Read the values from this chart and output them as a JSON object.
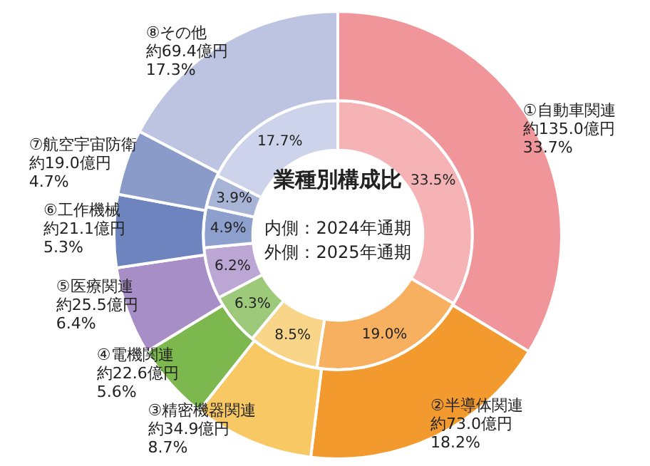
{
  "chart_data": {
    "type": "donut",
    "title": "業種別構成比",
    "annotations": [
      "内側：2024年通期",
      "外側：2025年通期"
    ],
    "categories": [
      "①自動車関連",
      "②半導体関連",
      "③精密機器関連",
      "④電機関連",
      "⑤医療関連",
      "⑥工作機械",
      "⑦航空宇宙防衛",
      "⑧その他"
    ],
    "series": [
      {
        "values": [
          135.0,
          73.0,
          34.9,
          22.6,
          25.5,
          21.1,
          19.0,
          69.4
        ],
        "colors": [
          "#f0969b",
          "#f39a2f",
          "#f8c865",
          "#7cb84e",
          "#a88ec6",
          "#6d84bf",
          "#8a9bc9",
          "#bcc4e2"
        ],
        "value_labels": [
          "約135.0億円\n33.7%",
          "約73.0億円\n18.2%",
          "約34.9億円\n8.7%",
          "約22.6億円\n5.6%",
          "約25.5億円\n6.4%",
          "約21.1億円\n5.3%",
          "約19.0億円\n4.7%",
          "約69.4億円\n17.3%"
        ]
      },
      {
        "values": [
          33.5,
          19.0,
          8.5,
          6.3,
          6.2,
          4.9,
          3.9,
          17.7
        ],
        "colors": [
          "#f5b3b5",
          "#f6b060",
          "#f9d58a",
          "#9dca7a",
          "#bca6d3",
          "#8d9fcd",
          "#a8b4d6",
          "#cdd3ea"
        ],
        "value_labels": [
          "33.5%",
          "19.0%",
          "8.5%",
          "6.3%",
          "6.2%",
          "4.9%",
          "3.9%",
          "17.7%"
        ]
      }
    ],
    "legend": false
  }
}
